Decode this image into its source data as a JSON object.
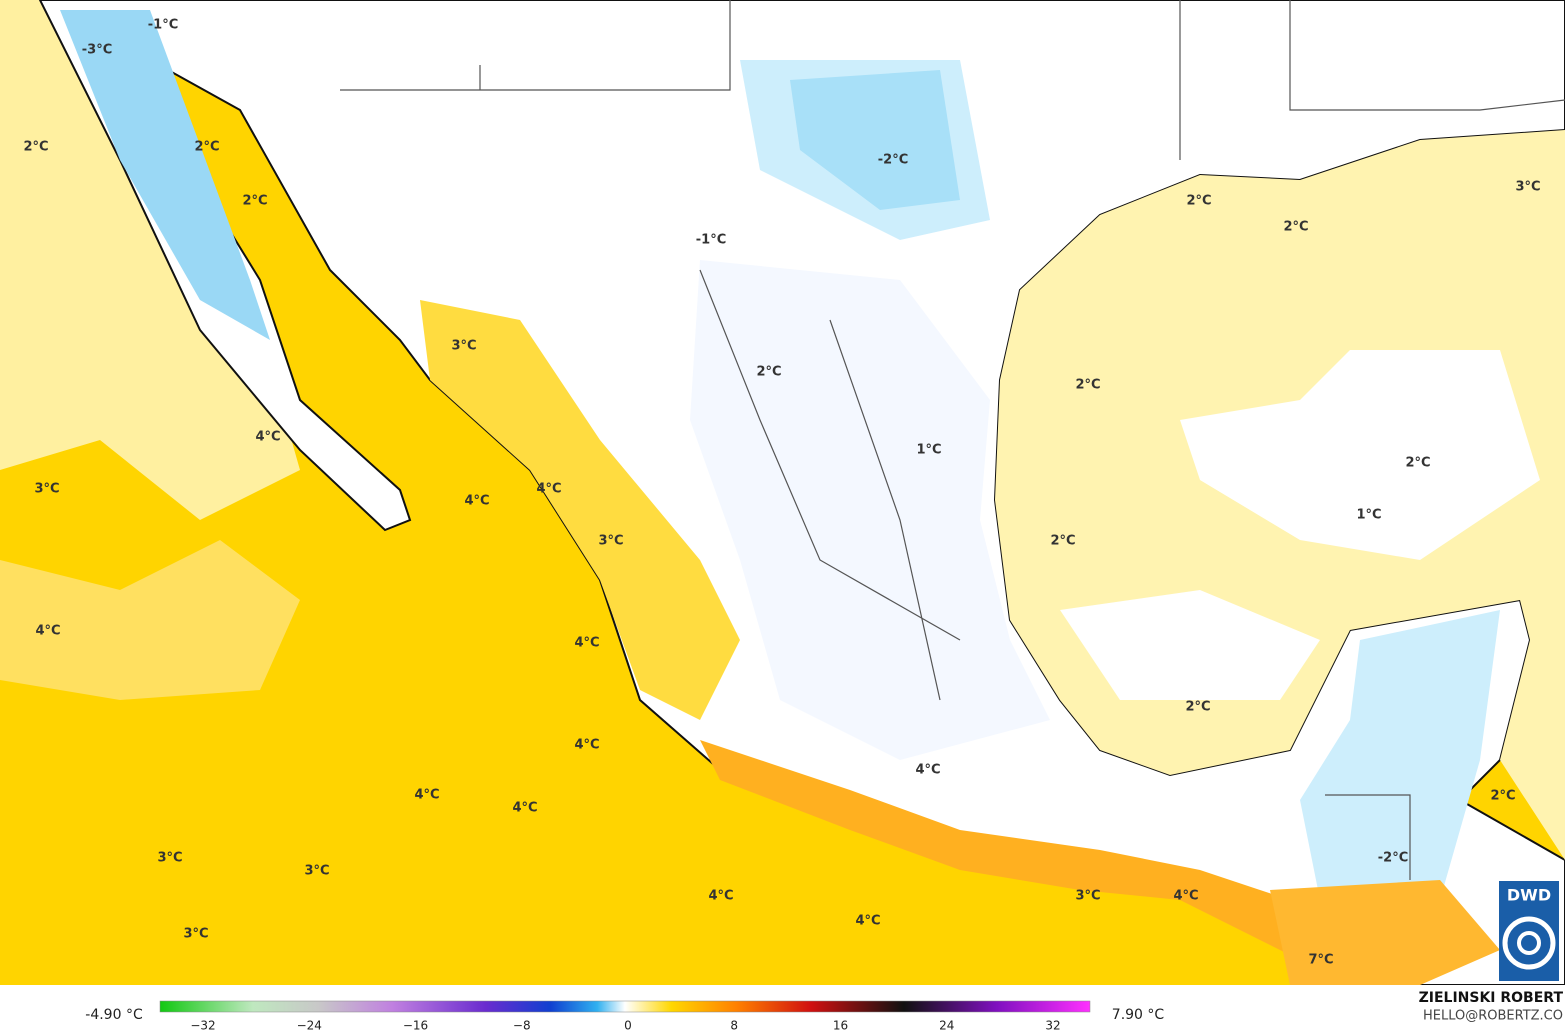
{
  "map": {
    "labels": [
      "-1°C",
      "-3°C",
      "2°C",
      "2°C",
      "2°C",
      "-2°C",
      "-1°C",
      "2°C",
      "2°C",
      "3°C",
      "3°C",
      "2°C",
      "2°C",
      "4°C",
      "1°C",
      "3°C",
      "4°C",
      "4°C",
      "2°C",
      "1°C",
      "3°C",
      "2°C",
      "4°C",
      "4°C",
      "2°C",
      "4°C",
      "4°C",
      "4°C",
      "4°C",
      "2°C",
      "-2°C",
      "3°C",
      "3°C",
      "4°C",
      "3°C",
      "4°C",
      "4°C",
      "3°C",
      "7°C"
    ]
  },
  "legend": {
    "min": "-4.90 °C",
    "max": "7.90 °C",
    "ticks": [
      "−32",
      "−24",
      "−16",
      "−8",
      "0",
      "8",
      "16",
      "24",
      "32"
    ]
  },
  "credit": {
    "name": "ZIELINSKI ROBERT",
    "contact": "HELLO@ROBERTZ.CO"
  },
  "logo": "DWD"
}
